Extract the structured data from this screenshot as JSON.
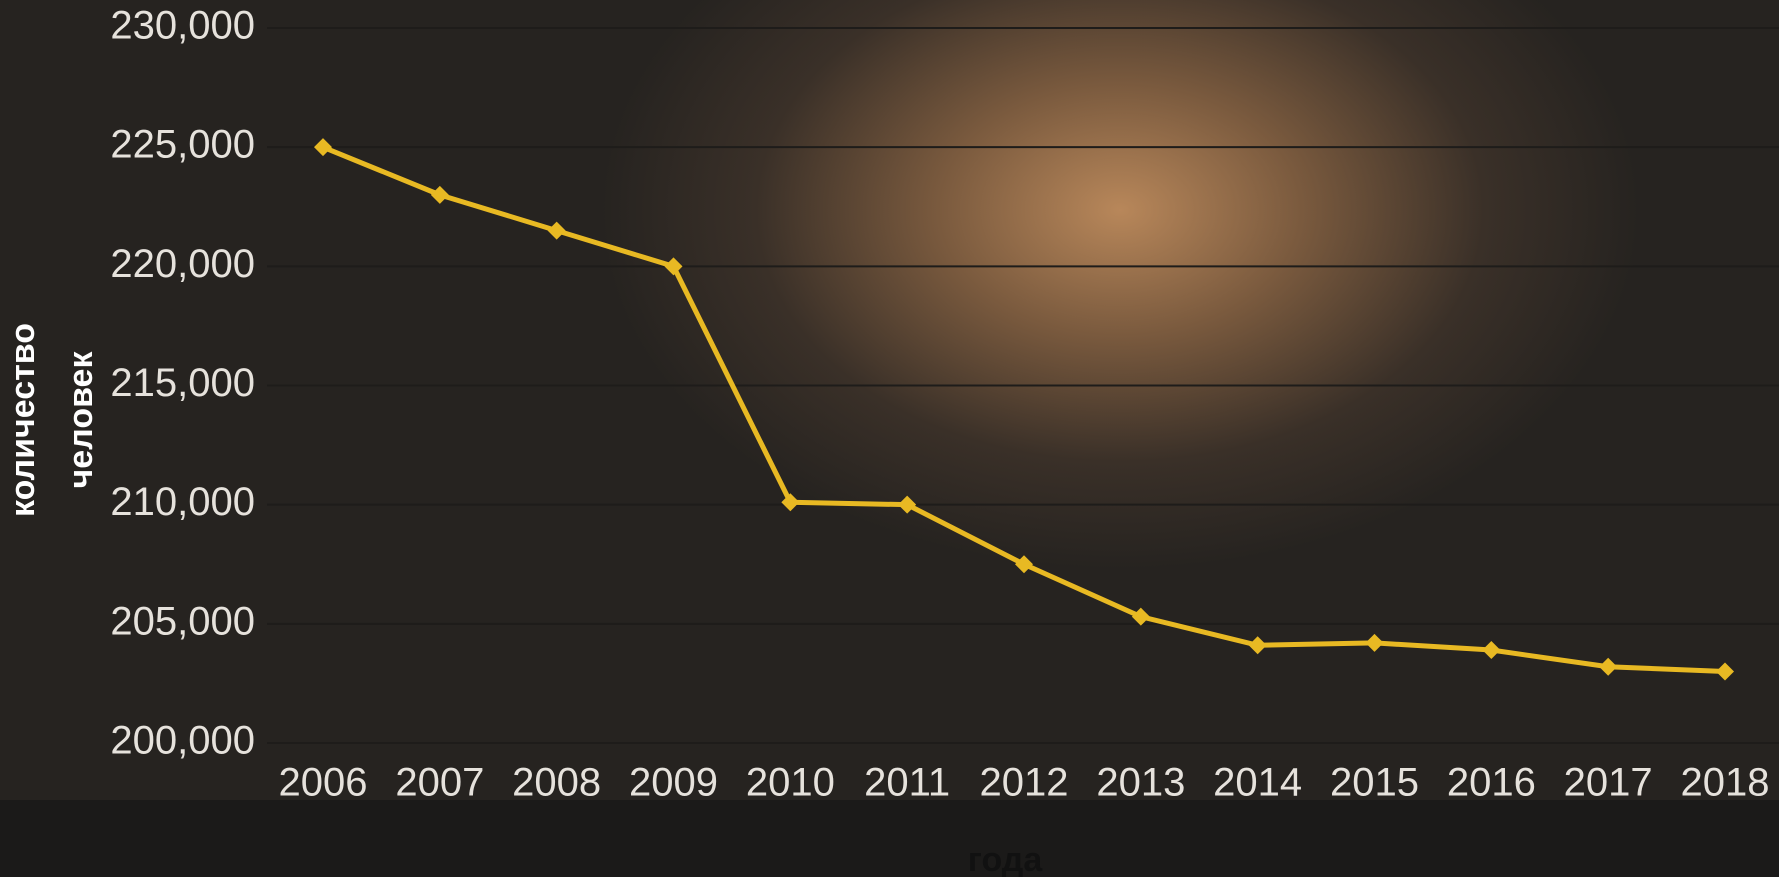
{
  "chart_data": {
    "type": "line",
    "x_label": "года",
    "y_label": "количество человек",
    "categories": [
      "2006",
      "2007",
      "2008",
      "2009",
      "2010",
      "2011",
      "2012",
      "2013",
      "2014",
      "2015",
      "2016",
      "2017",
      "2018"
    ],
    "series": [
      {
        "color": "#e8b923",
        "values": [
          225000,
          223000,
          221500,
          220000,
          210100,
          210000,
          207500,
          205300,
          204100,
          204200,
          203900,
          203200,
          203000
        ]
      }
    ],
    "ylim": [
      200000,
      230000
    ],
    "yticks": [
      {
        "value": 200000,
        "label": "200,000"
      },
      {
        "value": 205000,
        "label": "205,000"
      },
      {
        "value": 210000,
        "label": "210,000"
      },
      {
        "value": 215000,
        "label": "215,000"
      },
      {
        "value": 220000,
        "label": "220,000"
      },
      {
        "value": 225000,
        "label": "225,000"
      },
      {
        "value": 230000,
        "label": "230,000"
      }
    ],
    "grid": true
  }
}
